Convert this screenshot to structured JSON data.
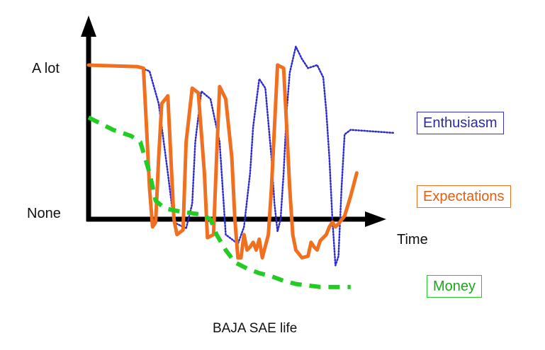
{
  "chart_data": {
    "type": "line",
    "title": "BAJA SAE life",
    "xlabel": "Time",
    "ylabel": "",
    "y_tick_labels": {
      "top": "A lot",
      "bottom": "None"
    },
    "x_range": [
      0,
      100
    ],
    "y_range": [
      -40,
      120
    ],
    "series": [
      {
        "name": "Enthusiasm",
        "color": "#2a2acf",
        "style": "dotted",
        "points": [
          [
            0,
            100
          ],
          [
            16,
            99
          ],
          [
            20,
            96
          ],
          [
            23,
            75
          ],
          [
            26,
            30
          ],
          [
            28,
            -2
          ],
          [
            32,
            -6
          ],
          [
            34,
            10
          ],
          [
            35,
            50
          ],
          [
            37,
            83
          ],
          [
            40,
            78
          ],
          [
            43,
            50
          ],
          [
            44,
            20
          ],
          [
            45,
            -10
          ],
          [
            49,
            -16
          ],
          [
            51,
            -5
          ],
          [
            53,
            30
          ],
          [
            54,
            60
          ],
          [
            56,
            91
          ],
          [
            58,
            85
          ],
          [
            60,
            40
          ],
          [
            61,
            10
          ],
          [
            62,
            -8
          ],
          [
            63,
            0
          ],
          [
            64,
            30
          ],
          [
            65,
            70
          ],
          [
            66,
            95
          ],
          [
            68,
            112
          ],
          [
            70,
            104
          ],
          [
            72,
            98
          ],
          [
            75,
            100
          ],
          [
            77,
            92
          ],
          [
            78,
            70
          ],
          [
            79,
            40
          ],
          [
            80,
            0
          ],
          [
            81,
            -30
          ],
          [
            82,
            -24
          ],
          [
            83,
            20
          ],
          [
            84,
            55
          ],
          [
            86,
            58
          ],
          [
            100,
            56
          ]
        ]
      },
      {
        "name": "Expectations",
        "color": "#f07020",
        "style": "solid",
        "points": [
          [
            0,
            100
          ],
          [
            16,
            99
          ],
          [
            18,
            98
          ],
          [
            19,
            60
          ],
          [
            20,
            20
          ],
          [
            21,
            -5
          ],
          [
            22,
            -2
          ],
          [
            23,
            40
          ],
          [
            24,
            75
          ],
          [
            26,
            80
          ],
          [
            27,
            40
          ],
          [
            28,
            0
          ],
          [
            29,
            -10
          ],
          [
            31,
            -7
          ],
          [
            32,
            50
          ],
          [
            34,
            85
          ],
          [
            36,
            82
          ],
          [
            38,
            30
          ],
          [
            39,
            -12
          ],
          [
            41,
            -10
          ],
          [
            42,
            40
          ],
          [
            43,
            86
          ],
          [
            45,
            78
          ],
          [
            47,
            40
          ],
          [
            48,
            0
          ],
          [
            49,
            -25
          ],
          [
            50,
            -25
          ],
          [
            51,
            -10
          ],
          [
            52,
            -20
          ],
          [
            53,
            -18
          ],
          [
            54,
            -15
          ],
          [
            55,
            -20
          ],
          [
            56,
            -13
          ],
          [
            57,
            -25
          ],
          [
            59,
            -10
          ],
          [
            60,
            20
          ],
          [
            61,
            60
          ],
          [
            62,
            100
          ],
          [
            64,
            98
          ],
          [
            65,
            60
          ],
          [
            66,
            20
          ],
          [
            67,
            -10
          ],
          [
            68,
            -20
          ],
          [
            70,
            -25
          ],
          [
            72,
            -24
          ],
          [
            73,
            -15
          ],
          [
            74,
            -18
          ],
          [
            75,
            -20
          ],
          [
            76,
            -14
          ],
          [
            77,
            -12
          ],
          [
            78,
            -10
          ],
          [
            79,
            -5
          ],
          [
            80,
            -2
          ],
          [
            81,
            -5
          ],
          [
            82,
            -3
          ],
          [
            84,
            2
          ],
          [
            86,
            15
          ],
          [
            88,
            30
          ]
        ]
      },
      {
        "name": "Money",
        "color": "#22cc22",
        "style": "dashed",
        "points": [
          [
            0,
            66
          ],
          [
            8,
            58
          ],
          [
            14,
            54
          ],
          [
            17,
            50
          ],
          [
            20,
            30
          ],
          [
            22,
            12
          ],
          [
            25,
            7
          ],
          [
            30,
            5
          ],
          [
            37,
            3
          ],
          [
            40,
            0
          ],
          [
            42,
            -10
          ],
          [
            45,
            -20
          ],
          [
            48,
            -28
          ],
          [
            52,
            -32
          ],
          [
            56,
            -35
          ],
          [
            60,
            -37
          ],
          [
            64,
            -40
          ],
          [
            68,
            -42
          ],
          [
            72,
            -43
          ],
          [
            76,
            -44
          ],
          [
            82,
            -44
          ],
          [
            86,
            -44
          ]
        ]
      }
    ]
  },
  "legend": {
    "enthusiasm": {
      "label": "Enthusiasm",
      "color": "#3333cc"
    },
    "expectations": {
      "label": "Expectations",
      "color": "#f07020"
    },
    "money": {
      "label": "Money",
      "color": "#22cc22"
    }
  }
}
